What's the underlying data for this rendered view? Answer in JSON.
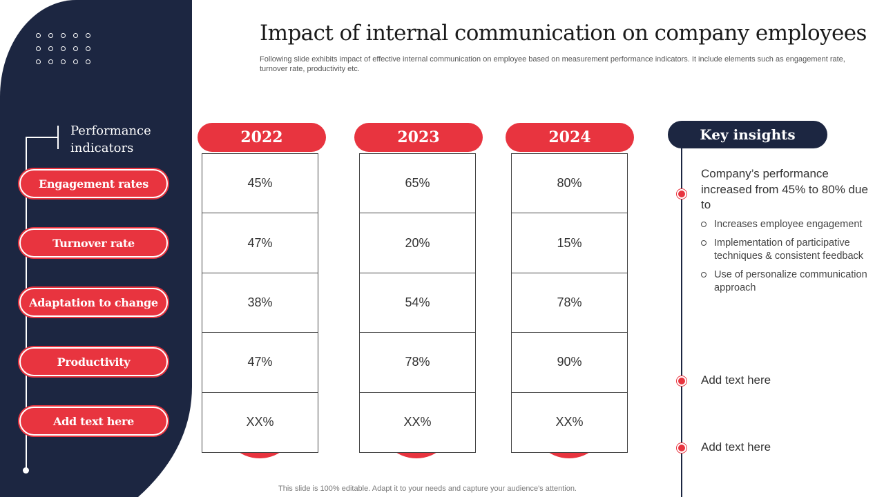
{
  "title": "Impact of internal communication on company employees",
  "subtitle": "Following slide exhibits impact of effective  internal communication on employee based on measurement performance indicators. It include elements such as engagement rate, turnover  rate, productivity etc.",
  "performance": {
    "heading": "Performance indicators",
    "items": [
      {
        "label": "Engagement rates"
      },
      {
        "label": "Turnover rate"
      },
      {
        "label": "Adaptation to change"
      },
      {
        "label": "Productivity"
      },
      {
        "label": "Add text here"
      }
    ]
  },
  "table": {
    "columns": [
      {
        "year": "2022",
        "values": [
          "45%",
          "47%",
          "38%",
          "47%",
          "XX%"
        ]
      },
      {
        "year": "2023",
        "values": [
          "65%",
          "20%",
          "54%",
          "78%",
          "XX%"
        ]
      },
      {
        "year": "2024",
        "values": [
          "80%",
          "15%",
          "78%",
          "90%",
          "XX%"
        ]
      }
    ]
  },
  "insights": {
    "heading": "Key insights",
    "main_point": "Company’s performance increased from 45% to 80% due to",
    "bullets": [
      "Increases employee engagement",
      "Implementation  of participative techniques & consistent feedback",
      "Use of personalize communication approach"
    ],
    "add_1": "Add text here",
    "add_2": "Add text here"
  },
  "footer": "This slide is 100% editable. Adapt it to your needs and capture your audience's attention.",
  "colors": {
    "accent": "#e8343f",
    "navy": "#1c2641"
  }
}
